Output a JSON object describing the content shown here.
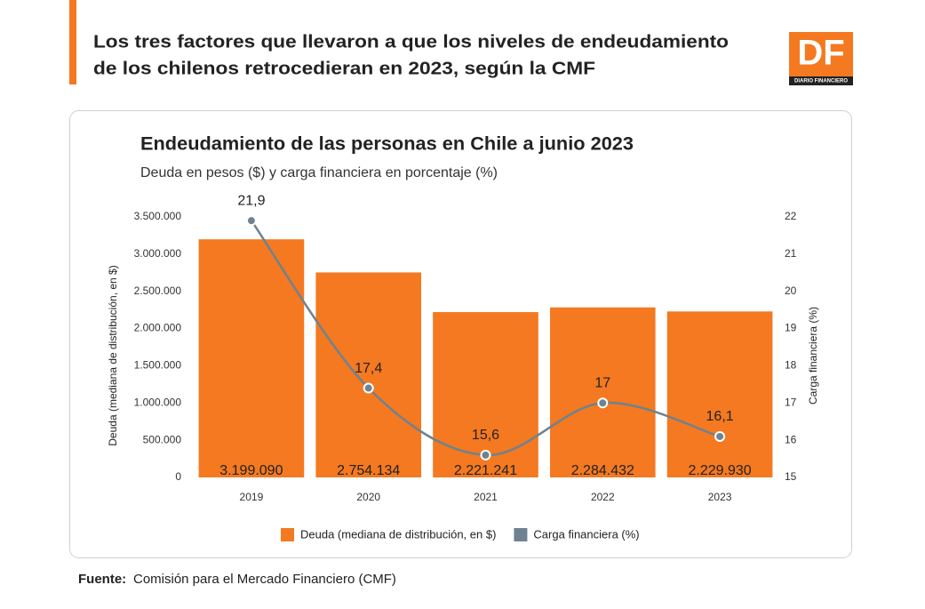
{
  "header": {
    "title_lines": [
      "Los tres factores que llevaron a que los niveles de endeudamiento",
      "de los chilenos retrocedieran en 2023, según la CMF"
    ],
    "logo": "DF",
    "logo_sub": "DIARIO FINANCIERO"
  },
  "chart_data": {
    "type": "combo",
    "title": "Endeudamiento de las personas en Chile a junio 2023",
    "subtitle": "Deuda en pesos ($) y carga financiera en porcentaje (%)",
    "y_label": "Deuda (mediana de distribución, en $)",
    "y2_label": "Carga financiera (%)",
    "categories": [
      "2019",
      "2020",
      "2021",
      "2022",
      "2023"
    ],
    "series": [
      {
        "name": "Deuda (mediana de distribución, en $)",
        "type": "bar",
        "color": "#f47920",
        "values": [
          3199090,
          2754134,
          2221241,
          2284432,
          2229930
        ],
        "value_labels": [
          "3.199.090",
          "2.754.134",
          "2.221.241",
          "2.284.432",
          "2.229.930"
        ]
      },
      {
        "name": "Carga financiera (%)",
        "type": "line",
        "axis": "y2",
        "color": "#6e8291",
        "values": [
          21.9,
          17.4,
          15.6,
          17,
          16.1
        ],
        "value_labels": [
          "21,9",
          "17,4",
          "15,6",
          "17",
          "16,1"
        ]
      }
    ],
    "ylim": [
      0,
      3500000
    ],
    "yticks": [
      0,
      {
        "value": 500000,
        "label": "500.000"
      },
      {
        "value": 1000000,
        "label": "1.000.000"
      },
      {
        "value": 1500000,
        "label": "1.500.000"
      },
      {
        "value": 2000000,
        "label": "2.000.000"
      },
      {
        "value": 2500000,
        "label": "2.500.000"
      },
      {
        "value": 3000000,
        "label": "3.000.000"
      },
      {
        "value": 3500000,
        "label": "3.500.000"
      }
    ],
    "y2lim": [
      15,
      22
    ],
    "y2ticks": [
      15,
      16,
      17,
      18,
      19,
      20,
      21,
      22
    ],
    "legend": "bottom"
  },
  "footer": {
    "label": "Fuente:",
    "text": "Comisión para el Mercado Financiero (CMF)"
  }
}
